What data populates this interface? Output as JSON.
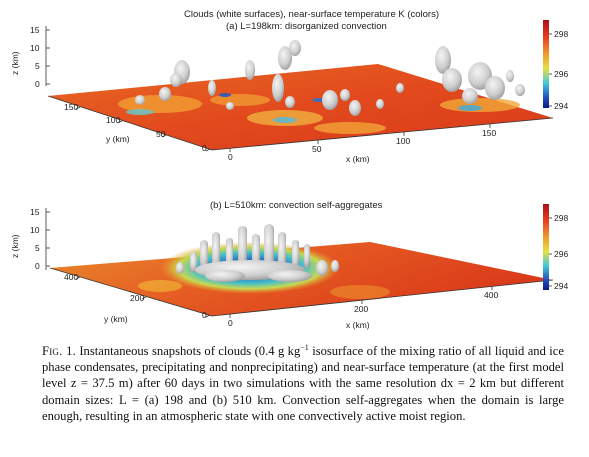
{
  "panels": [
    {
      "id": "a",
      "title": "Clouds (white surfaces), near-surface temperature K (colors)",
      "subtitle": "(a) L=198km: disorganized convection",
      "z_axis": {
        "label": "z (km)",
        "ticks": [
          "15",
          "10",
          "5",
          "0"
        ]
      },
      "y_axis": {
        "label": "y (km)",
        "ticks": [
          "150",
          "100",
          "50",
          "0"
        ]
      },
      "x_axis": {
        "label": "x (km)",
        "ticks": [
          "0",
          "50",
          "100",
          "150"
        ]
      },
      "colorbar": {
        "ticks": [
          "298",
          "296",
          "294"
        ]
      }
    },
    {
      "id": "b",
      "subtitle": "(b) L=510km: convection self-aggregates",
      "z_axis": {
        "label": "z (km)",
        "ticks": [
          "15",
          "10",
          "5",
          "0"
        ]
      },
      "y_axis": {
        "label": "y (km)",
        "ticks": [
          "400",
          "200",
          "0"
        ]
      },
      "x_axis": {
        "label": "x (km)",
        "ticks": [
          "0",
          "200",
          "400"
        ]
      },
      "colorbar": {
        "ticks": [
          "298",
          "296",
          "294"
        ]
      }
    }
  ],
  "colors": {
    "warm": "#d92a1e",
    "mid": "#f08a2a",
    "cool_yellow": "#d8d84a",
    "cool_cyan": "#3cb8d8",
    "cold": "#1a2a9a",
    "cloud": "#d8d8d8"
  },
  "caption": {
    "label": "Fig. 1.",
    "text_1": " Instantaneous snapshots of clouds (0.4 g kg",
    "sup": "−1",
    "text_2": " isosurface of the mixing ratio of all liquid and ice phase condensates, precipitating and nonprecipitating) and near-surface temperature (at the first model level z = 37.5 m) after 60 days in two simulations with the same resolution dx = 2 km but different domain sizes: L = (a) 198 and (b) 510 km. Convection self-aggregates when the domain is large enough, resulting in an atmospheric state with one convectively active moist region."
  }
}
